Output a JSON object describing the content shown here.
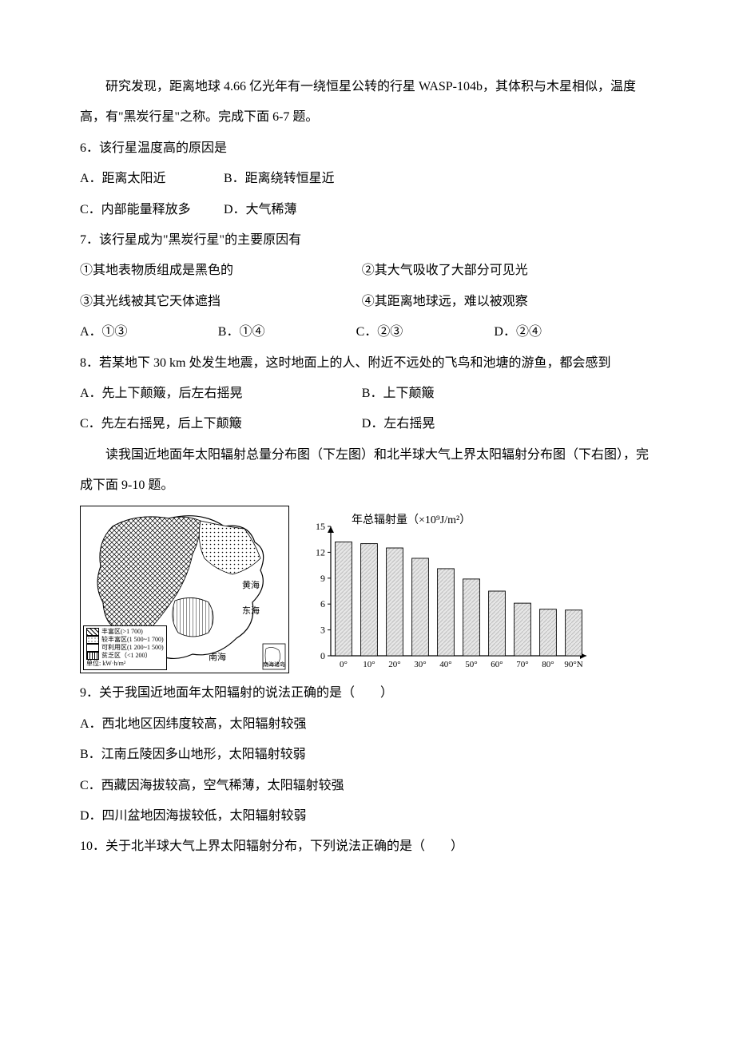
{
  "intro1": "研究发现，距离地球 4.66 亿光年有一绕恒星公转的行星 WASP-104b，其体积与木星相似，温度高，有\"黑炭行星\"之称。完成下面 6-7 题。",
  "q6": {
    "stem": "6．该行星温度高的原因是",
    "A": "A．距离太阳近",
    "B": "B．距离绕转恒星近",
    "C": "C．内部能量释放多",
    "D": "D．大气稀薄"
  },
  "q7": {
    "stem": "7．该行星成为\"黑炭行星\"的主要原因有",
    "s1": "①其地表物质组成是黑色的",
    "s2": "②其大气吸收了大部分可见光",
    "s3": "③其光线被其它天体遮挡",
    "s4": "④其距离地球远，难以被观察",
    "A": "A．①③",
    "B": "B．①④",
    "C": "C．②③",
    "D": "D．②④"
  },
  "q8": {
    "stem": "8．若某地下 30 km 处发生地震，这时地面上的人、附近不远处的飞鸟和池塘的游鱼，都会感到",
    "A": "A．先上下颠簸，后左右摇晃",
    "B": "B．上下颠簸",
    "C": "C．先左右摇晃，后上下颠簸",
    "D": "D．左右摇晃"
  },
  "intro2": "读我国近地面年太阳辐射总量分布图（下左图）和北半球大气上界太阳辐射分布图（下右图），完成下面 9-10 题。",
  "map": {
    "sea_yellow": "黄海",
    "sea_east": "东海",
    "sea_south": "南海",
    "islands": "南海诸岛",
    "legend": {
      "l1": "丰富区(>1 700)",
      "l2": "较丰富区(1 500~1 700)",
      "l3": "可利用区(1 200~1 500)",
      "l4": "贫乏区（<1 200）",
      "unit": "单位: kW·h/m²"
    },
    "border_color": "#000000",
    "bg_color": "#ffffff",
    "label_fontsize": 8
  },
  "chart": {
    "type": "bar",
    "title": "年总辐射量（×10⁹J/m²）",
    "title_fontsize": 14,
    "categories": [
      "0°",
      "10°",
      "20°",
      "30°",
      "40°",
      "50°",
      "60°",
      "70°",
      "80°",
      "90°N"
    ],
    "values": [
      13.2,
      13.0,
      12.5,
      11.3,
      10.1,
      8.9,
      7.5,
      6.1,
      5.4,
      5.3
    ],
    "ylim": [
      0,
      15
    ],
    "ytick_step": 3,
    "yticks": [
      "0",
      "3",
      "6",
      "9",
      "12",
      "15"
    ],
    "bar_fill": "#e6e6e6",
    "bar_hatch": "#bdbdbd",
    "bar_stroke": "#000000",
    "axis_color": "#000000",
    "axis_fontsize": 12,
    "bar_width": 0.65,
    "background_color": "#ffffff"
  },
  "q9": {
    "stem": "9．关于我国近地面年太阳辐射的说法正确的是（　　）",
    "A": "A．西北地区因纬度较高，太阳辐射较强",
    "B": "B．江南丘陵因多山地形，太阳辐射较弱",
    "C": "C．西藏因海拔较高，空气稀薄，太阳辐射较强",
    "D": "D．四川盆地因海拔较低，太阳辐射较弱"
  },
  "q10": {
    "stem": "10．关于北半球大气上界太阳辐射分布，下列说法正确的是（　　）"
  }
}
